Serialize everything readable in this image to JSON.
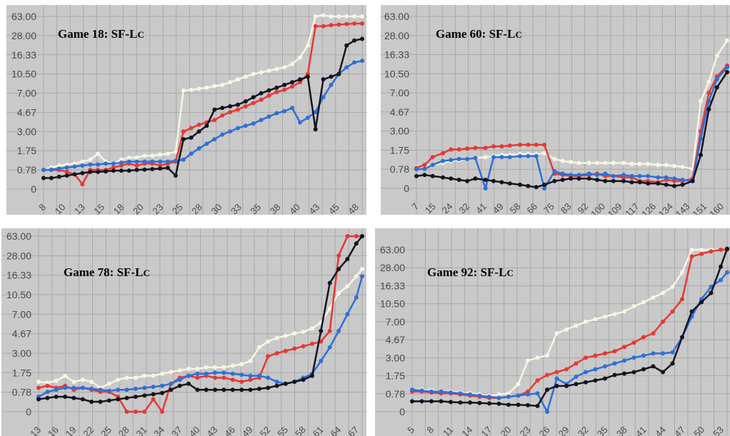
{
  "chart_data": [
    {
      "type": "line",
      "title": "Game 18: SF-L",
      "title_smallcaps": "C",
      "y_ticks": [
        "63.00",
        "28.00",
        "16.33",
        "10.50",
        "7.00",
        "4.67",
        "3.00",
        "1.75",
        "0.78",
        "0"
      ],
      "x_tick_labels": [
        "8",
        "10",
        "13",
        "15",
        "18",
        "20",
        "23",
        "25",
        "28",
        "30",
        "33",
        "35",
        "38",
        "40",
        "43",
        "45",
        "48"
      ],
      "x": [
        8,
        9,
        10,
        11,
        12,
        13,
        14,
        15,
        16,
        17,
        18,
        19,
        20,
        21,
        22,
        23,
        24,
        25,
        26,
        27,
        28,
        29,
        30,
        31,
        32,
        33,
        34,
        35,
        36,
        37,
        38,
        39,
        40,
        41,
        42,
        43,
        44,
        45,
        46,
        47,
        48,
        49
      ],
      "series": [
        {
          "color": "#f7f5e4",
          "values": [
            0.78,
            0.9,
            1.0,
            1.05,
            1.1,
            1.2,
            1.3,
            1.6,
            1.2,
            1.1,
            1.3,
            1.4,
            1.4,
            1.5,
            1.5,
            1.55,
            1.6,
            1.7,
            7.5,
            7.6,
            7.8,
            8.0,
            8.3,
            8.5,
            9.0,
            9.5,
            10.0,
            10.5,
            11.0,
            11.5,
            12.0,
            12.5,
            13.5,
            15.5,
            22.0,
            63,
            70,
            63,
            63,
            63,
            63,
            63
          ]
        },
        {
          "color": "#e53935",
          "values": [
            0.78,
            0.78,
            0.78,
            0.7,
            0.6,
            0.2,
            0.78,
            0.78,
            0.78,
            0.9,
            1.0,
            1.1,
            1.0,
            1.1,
            1.1,
            1.0,
            1.1,
            1.2,
            3.0,
            3.3,
            3.6,
            3.8,
            4.0,
            4.4,
            4.7,
            5.0,
            5.4,
            5.8,
            6.2,
            6.7,
            7.2,
            7.6,
            8.2,
            9.0,
            10.5,
            45,
            45,
            47,
            48,
            49,
            50,
            50
          ]
        },
        {
          "color": "#2f6fd6",
          "values": [
            0.78,
            0.8,
            0.85,
            0.9,
            0.95,
            1.0,
            1.05,
            1.05,
            1.1,
            1.1,
            1.15,
            1.2,
            1.2,
            1.2,
            1.2,
            1.2,
            1.2,
            1.25,
            1.3,
            1.6,
            1.9,
            2.2,
            2.5,
            2.8,
            3.0,
            3.3,
            3.5,
            3.7,
            4.0,
            4.3,
            4.6,
            4.8,
            5.2,
            3.8,
            4.2,
            4.7,
            6.5,
            8.5,
            10.5,
            12.5,
            14.0,
            14.5
          ]
        },
        {
          "color": "#14141e",
          "values": [
            0.45,
            0.45,
            0.5,
            0.55,
            0.6,
            0.65,
            0.7,
            0.7,
            0.72,
            0.75,
            0.75,
            0.75,
            0.78,
            0.8,
            0.82,
            0.85,
            0.88,
            0.55,
            2.5,
            2.6,
            3.0,
            3.5,
            5.0,
            5.2,
            5.4,
            5.6,
            6.0,
            6.5,
            7.0,
            7.5,
            8.0,
            8.5,
            9.0,
            9.5,
            10.0,
            3.2,
            9.5,
            10.0,
            10.5,
            22.0,
            25.0,
            26.0
          ]
        }
      ]
    },
    {
      "type": "line",
      "title": "Game 60: SF-L",
      "title_smallcaps": "C",
      "y_ticks": [
        "63.00",
        "28.00",
        "16.33",
        "10.50",
        "7.00",
        "4.67",
        "3.00",
        "1.75",
        "0.78",
        "0"
      ],
      "x_tick_labels": [
        "7",
        "15",
        "24",
        "32",
        "41",
        "49",
        "58",
        "66",
        "75",
        "83",
        "92",
        "100",
        "109",
        "117",
        "126",
        "134",
        "143",
        "151",
        "160"
      ],
      "x": [
        7,
        11,
        15,
        20,
        24,
        28,
        32,
        36,
        41,
        45,
        49,
        53,
        58,
        62,
        66,
        70,
        75,
        79,
        83,
        87,
        92,
        96,
        100,
        104,
        109,
        113,
        117,
        121,
        126,
        130,
        134,
        138,
        143,
        147,
        151,
        155,
        160
      ],
      "series": [
        {
          "color": "#f7f5e4",
          "values": [
            0.9,
            0.95,
            1.0,
            1.1,
            1.2,
            1.25,
            1.3,
            1.35,
            1.4,
            1.45,
            1.5,
            1.5,
            1.55,
            1.55,
            1.55,
            1.6,
            1.3,
            1.2,
            1.15,
            1.1,
            1.1,
            1.1,
            1.1,
            1.1,
            1.1,
            1.05,
            1.05,
            1.05,
            1.0,
            1.0,
            0.95,
            0.9,
            0.8,
            6.0,
            9.0,
            16.0,
            25.0
          ]
        },
        {
          "color": "#e53935",
          "values": [
            0.85,
            1.0,
            1.4,
            1.6,
            1.8,
            1.8,
            1.85,
            1.9,
            1.9,
            2.0,
            2.0,
            2.05,
            2.1,
            2.1,
            2.1,
            2.1,
            0.6,
            0.55,
            0.5,
            0.5,
            0.55,
            0.6,
            0.5,
            0.5,
            0.45,
            0.45,
            0.3,
            0.3,
            0.25,
            0.35,
            0.3,
            0.3,
            0.4,
            3.0,
            7.0,
            10.0,
            13.0
          ]
        },
        {
          "color": "#2f6fd6",
          "values": [
            0.78,
            0.8,
            1.0,
            1.2,
            1.25,
            1.3,
            1.3,
            1.35,
            0.0,
            1.4,
            1.4,
            1.4,
            1.45,
            1.45,
            1.45,
            0.0,
            0.7,
            0.6,
            0.55,
            0.55,
            0.6,
            0.55,
            0.6,
            0.5,
            0.55,
            0.5,
            0.5,
            0.5,
            0.45,
            0.45,
            0.4,
            0.35,
            0.3,
            2.5,
            6.0,
            9.5,
            12.5
          ]
        },
        {
          "color": "#14141e",
          "values": [
            0.5,
            0.55,
            0.5,
            0.45,
            0.4,
            0.35,
            0.3,
            0.4,
            0.35,
            0.3,
            0.25,
            0.2,
            0.15,
            0.1,
            0.05,
            0.15,
            0.3,
            0.35,
            0.4,
            0.4,
            0.4,
            0.35,
            0.3,
            0.3,
            0.3,
            0.25,
            0.25,
            0.2,
            0.2,
            0.15,
            0.1,
            0.15,
            0.3,
            1.5,
            5.0,
            8.0,
            11.0
          ]
        }
      ]
    },
    {
      "type": "line",
      "title": "Game 78: SF-L",
      "title_smallcaps": "C",
      "y_ticks": [
        "63.00",
        "28.00",
        "16.33",
        "10.50",
        "7.00",
        "4.67",
        "3.00",
        "1.75",
        "0.78",
        "0"
      ],
      "x_tick_labels": [
        "13",
        "16",
        "19",
        "22",
        "25",
        "28",
        "31",
        "34",
        "37",
        "40",
        "43",
        "46",
        "49",
        "52",
        "55",
        "58",
        "61",
        "64",
        "67"
      ],
      "x": [
        13,
        14.5,
        16,
        17.5,
        19,
        20.5,
        22,
        23.5,
        25,
        26.5,
        28,
        29.5,
        31,
        32.5,
        34,
        35.5,
        37,
        38.5,
        40,
        41.5,
        43,
        44.5,
        46,
        47.5,
        49,
        50.5,
        52,
        53.5,
        55,
        56.5,
        58,
        59.5,
        61,
        62.5,
        64,
        65.5,
        67,
        68
      ],
      "series": [
        {
          "color": "#f7f5e4",
          "values": [
            1.3,
            1.25,
            1.35,
            1.6,
            1.3,
            1.4,
            1.3,
            1.0,
            1.2,
            1.4,
            1.5,
            1.5,
            1.6,
            1.6,
            1.7,
            1.8,
            1.9,
            2.0,
            2.0,
            2.1,
            2.1,
            2.1,
            2.2,
            2.3,
            2.5,
            3.5,
            4.0,
            4.3,
            4.5,
            4.7,
            4.9,
            5.3,
            6.0,
            8.0,
            11.0,
            13.0,
            16.0,
            20.0
          ]
        },
        {
          "color": "#e53935",
          "values": [
            1.0,
            1.1,
            1.0,
            1.1,
            0.9,
            1.0,
            0.9,
            0.8,
            0.8,
            0.6,
            0.0,
            0.0,
            0.0,
            0.5,
            0.0,
            1.2,
            1.5,
            1.6,
            1.5,
            1.6,
            1.5,
            1.5,
            1.4,
            1.3,
            1.4,
            1.5,
            2.8,
            3.0,
            3.2,
            3.4,
            3.6,
            3.8,
            4.0,
            5.0,
            28,
            63,
            63,
            63
          ]
        },
        {
          "color": "#2f6fd6",
          "values": [
            0.6,
            0.8,
            0.9,
            1.0,
            1.0,
            1.0,
            0.95,
            0.9,
            0.85,
            0.9,
            0.9,
            0.95,
            1.0,
            1.05,
            1.1,
            1.2,
            1.4,
            1.6,
            1.7,
            1.7,
            1.75,
            1.75,
            1.7,
            1.65,
            1.6,
            1.6,
            1.5,
            1.3,
            1.2,
            1.3,
            1.5,
            1.7,
            2.5,
            3.5,
            5.0,
            7.0,
            10.0,
            16.0
          ]
        },
        {
          "color": "#14141e",
          "values": [
            0.5,
            0.55,
            0.6,
            0.6,
            0.55,
            0.5,
            0.4,
            0.4,
            0.45,
            0.5,
            0.55,
            0.6,
            0.65,
            0.7,
            0.75,
            0.9,
            1.1,
            1.2,
            0.9,
            0.9,
            0.9,
            0.9,
            0.9,
            0.9,
            0.9,
            0.95,
            1.0,
            1.1,
            1.2,
            1.3,
            1.4,
            1.6,
            5.0,
            14.0,
            20.0,
            26.0,
            50.0,
            63
          ]
        }
      ]
    },
    {
      "type": "line",
      "title": "Game 92: SF-L",
      "title_smallcaps": "C",
      "y_ticks": [
        "63.00",
        "28.00",
        "16.33",
        "10.50",
        "7.00",
        "4.67",
        "3.00",
        "1.75",
        "0.78",
        "0"
      ],
      "x_tick_labels": [
        "5",
        "8",
        "11",
        "14",
        "17",
        "20",
        "23",
        "26",
        "29",
        "32",
        "35",
        "38",
        "41",
        "44",
        "47",
        "50",
        "53"
      ],
      "x": [
        5,
        6.5,
        8,
        9.5,
        11,
        12.5,
        14,
        15.5,
        17,
        18.5,
        20,
        21.5,
        23,
        24.5,
        26,
        27.5,
        29,
        30.5,
        32,
        33.5,
        35,
        36.5,
        38,
        39.5,
        41,
        42.5,
        44,
        45.5,
        47,
        48.5,
        50,
        51.5,
        53,
        54
      ],
      "series": [
        {
          "color": "#f7f5e4",
          "values": [
            1.0,
            1.0,
            0.95,
            0.9,
            0.9,
            0.85,
            0.8,
            0.75,
            0.7,
            0.75,
            0.8,
            1.3,
            2.8,
            3.0,
            3.2,
            5.5,
            6.0,
            6.5,
            7.0,
            7.5,
            8.0,
            8.5,
            9.0,
            10.0,
            11.0,
            12.5,
            14.0,
            16.0,
            25.0,
            63,
            63,
            63,
            63,
            63
          ]
        },
        {
          "color": "#e53935",
          "values": [
            0.9,
            0.9,
            0.85,
            0.8,
            0.8,
            0.75,
            0.7,
            0.65,
            0.6,
            0.6,
            0.65,
            0.7,
            0.9,
            1.5,
            1.8,
            2.0,
            2.2,
            2.6,
            3.0,
            3.2,
            3.4,
            3.6,
            4.0,
            4.4,
            5.0,
            5.5,
            7.0,
            9.0,
            12.0,
            50.0,
            55.0,
            60.0,
            63,
            63
          ]
        },
        {
          "color": "#2f6fd6",
          "values": [
            1.0,
            0.95,
            0.9,
            0.9,
            0.85,
            0.8,
            0.75,
            0.7,
            0.65,
            0.6,
            0.65,
            0.7,
            0.75,
            0.8,
            0.0,
            1.6,
            1.3,
            1.7,
            2.0,
            2.2,
            2.4,
            2.6,
            2.8,
            3.0,
            3.2,
            3.4,
            3.4,
            3.5,
            5.0,
            8.0,
            12.0,
            16.0,
            20.0,
            25.0
          ]
        },
        {
          "color": "#14141e",
          "values": [
            0.45,
            0.45,
            0.45,
            0.45,
            0.42,
            0.4,
            0.4,
            0.38,
            0.36,
            0.35,
            0.3,
            0.3,
            0.28,
            0.25,
            1.0,
            1.2,
            1.2,
            1.3,
            1.4,
            1.5,
            1.6,
            1.8,
            1.9,
            2.0,
            2.2,
            2.4,
            2.0,
            2.6,
            5.0,
            9.0,
            11.0,
            14.0,
            30.0,
            70.0
          ]
        }
      ]
    }
  ]
}
